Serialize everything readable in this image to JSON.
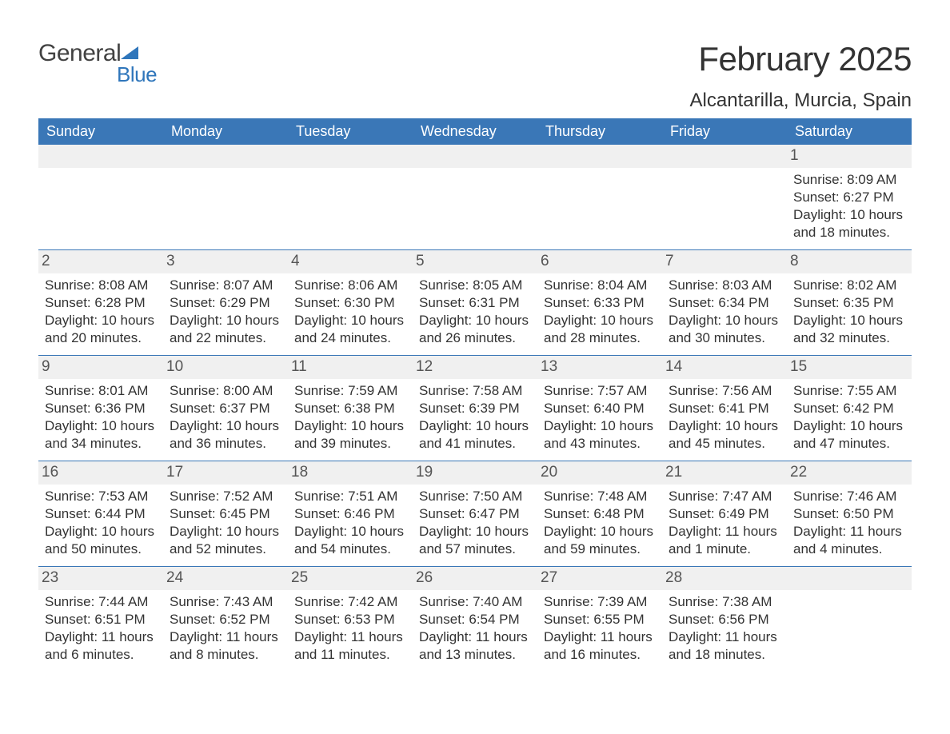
{
  "brand": {
    "main": "General",
    "sub": "Blue"
  },
  "title": "February 2025",
  "location": "Alcantarilla, Murcia, Spain",
  "colors": {
    "header_bg": "#3a77b7",
    "header_text": "#ffffff",
    "daynum_bg": "#f0f0f0",
    "border": "#3a77b7",
    "body_text": "#333333",
    "brand_blue": "#2f76bb",
    "brand_gray": "#424242"
  },
  "weekdays": [
    "Sunday",
    "Monday",
    "Tuesday",
    "Wednesday",
    "Thursday",
    "Friday",
    "Saturday"
  ],
  "first_day_index": 6,
  "days": [
    {
      "n": 1,
      "sunrise": "8:09 AM",
      "sunset": "6:27 PM",
      "daylight": "10 hours and 18 minutes."
    },
    {
      "n": 2,
      "sunrise": "8:08 AM",
      "sunset": "6:28 PM",
      "daylight": "10 hours and 20 minutes."
    },
    {
      "n": 3,
      "sunrise": "8:07 AM",
      "sunset": "6:29 PM",
      "daylight": "10 hours and 22 minutes."
    },
    {
      "n": 4,
      "sunrise": "8:06 AM",
      "sunset": "6:30 PM",
      "daylight": "10 hours and 24 minutes."
    },
    {
      "n": 5,
      "sunrise": "8:05 AM",
      "sunset": "6:31 PM",
      "daylight": "10 hours and 26 minutes."
    },
    {
      "n": 6,
      "sunrise": "8:04 AM",
      "sunset": "6:33 PM",
      "daylight": "10 hours and 28 minutes."
    },
    {
      "n": 7,
      "sunrise": "8:03 AM",
      "sunset": "6:34 PM",
      "daylight": "10 hours and 30 minutes."
    },
    {
      "n": 8,
      "sunrise": "8:02 AM",
      "sunset": "6:35 PM",
      "daylight": "10 hours and 32 minutes."
    },
    {
      "n": 9,
      "sunrise": "8:01 AM",
      "sunset": "6:36 PM",
      "daylight": "10 hours and 34 minutes."
    },
    {
      "n": 10,
      "sunrise": "8:00 AM",
      "sunset": "6:37 PM",
      "daylight": "10 hours and 36 minutes."
    },
    {
      "n": 11,
      "sunrise": "7:59 AM",
      "sunset": "6:38 PM",
      "daylight": "10 hours and 39 minutes."
    },
    {
      "n": 12,
      "sunrise": "7:58 AM",
      "sunset": "6:39 PM",
      "daylight": "10 hours and 41 minutes."
    },
    {
      "n": 13,
      "sunrise": "7:57 AM",
      "sunset": "6:40 PM",
      "daylight": "10 hours and 43 minutes."
    },
    {
      "n": 14,
      "sunrise": "7:56 AM",
      "sunset": "6:41 PM",
      "daylight": "10 hours and 45 minutes."
    },
    {
      "n": 15,
      "sunrise": "7:55 AM",
      "sunset": "6:42 PM",
      "daylight": "10 hours and 47 minutes."
    },
    {
      "n": 16,
      "sunrise": "7:53 AM",
      "sunset": "6:44 PM",
      "daylight": "10 hours and 50 minutes."
    },
    {
      "n": 17,
      "sunrise": "7:52 AM",
      "sunset": "6:45 PM",
      "daylight": "10 hours and 52 minutes."
    },
    {
      "n": 18,
      "sunrise": "7:51 AM",
      "sunset": "6:46 PM",
      "daylight": "10 hours and 54 minutes."
    },
    {
      "n": 19,
      "sunrise": "7:50 AM",
      "sunset": "6:47 PM",
      "daylight": "10 hours and 57 minutes."
    },
    {
      "n": 20,
      "sunrise": "7:48 AM",
      "sunset": "6:48 PM",
      "daylight": "10 hours and 59 minutes."
    },
    {
      "n": 21,
      "sunrise": "7:47 AM",
      "sunset": "6:49 PM",
      "daylight": "11 hours and 1 minute."
    },
    {
      "n": 22,
      "sunrise": "7:46 AM",
      "sunset": "6:50 PM",
      "daylight": "11 hours and 4 minutes."
    },
    {
      "n": 23,
      "sunrise": "7:44 AM",
      "sunset": "6:51 PM",
      "daylight": "11 hours and 6 minutes."
    },
    {
      "n": 24,
      "sunrise": "7:43 AM",
      "sunset": "6:52 PM",
      "daylight": "11 hours and 8 minutes."
    },
    {
      "n": 25,
      "sunrise": "7:42 AM",
      "sunset": "6:53 PM",
      "daylight": "11 hours and 11 minutes."
    },
    {
      "n": 26,
      "sunrise": "7:40 AM",
      "sunset": "6:54 PM",
      "daylight": "11 hours and 13 minutes."
    },
    {
      "n": 27,
      "sunrise": "7:39 AM",
      "sunset": "6:55 PM",
      "daylight": "11 hours and 16 minutes."
    },
    {
      "n": 28,
      "sunrise": "7:38 AM",
      "sunset": "6:56 PM",
      "daylight": "11 hours and 18 minutes."
    }
  ],
  "labels": {
    "sunrise": "Sunrise:",
    "sunset": "Sunset:",
    "daylight": "Daylight:"
  }
}
